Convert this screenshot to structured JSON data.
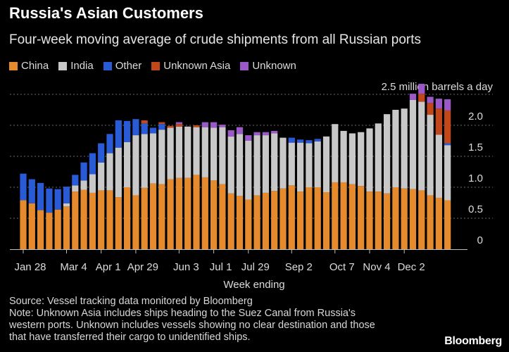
{
  "header": {
    "title": "Russia's Asian Customers",
    "subtitle": "Four-week moving average of crude shipments from all Russian ports"
  },
  "footer": {
    "source": "Source: Vessel tracking data monitored by Bloomberg",
    "note_lines": [
      "Note: Unknown Asia includes ships heading to the Suez Canal from Russia's",
      "western ports. Unknown includes vessels showing no clear destination and those",
      "that have transferred their cargo to unidentified ships."
    ],
    "brand": "Bloomberg"
  },
  "chart_data": {
    "type": "bar",
    "stacked": true,
    "unit_label": "2.5 million barrels a day",
    "xlabel": "Week ending",
    "ylabel": "",
    "ylim": [
      0,
      2.5
    ],
    "y_ticks": [
      "0",
      "0.5",
      "1.0",
      "1.5",
      "2.0"
    ],
    "grid": true,
    "legend_position": "top",
    "x_tick_labels": [
      {
        "index": 0,
        "label": "Jan 28"
      },
      {
        "index": 5,
        "label": "Mar 4"
      },
      {
        "index": 9,
        "label": "Apr 1"
      },
      {
        "index": 13,
        "label": "Apr 29"
      },
      {
        "index": 18,
        "label": "Jun 3"
      },
      {
        "index": 22,
        "label": "Jul 1"
      },
      {
        "index": 26,
        "label": "Jul 29"
      },
      {
        "index": 31,
        "label": "Sep 2"
      },
      {
        "index": 36,
        "label": "Oct 7"
      },
      {
        "index": 40,
        "label": "Nov 4"
      },
      {
        "index": 44,
        "label": "Dec 2"
      }
    ],
    "series": [
      {
        "name": "China",
        "color": "#e68a2e",
        "values": [
          0.79,
          0.74,
          0.63,
          0.59,
          0.64,
          0.69,
          0.93,
          0.96,
          0.91,
          0.95,
          0.95,
          0.84,
          1.0,
          0.87,
          0.99,
          1.06,
          1.05,
          1.13,
          1.15,
          1.15,
          1.2,
          1.16,
          1.11,
          1.05,
          0.9,
          0.86,
          0.8,
          0.87,
          0.91,
          0.94,
          0.98,
          1.03,
          0.93,
          1.0,
          1.0,
          0.92,
          1.08,
          1.08,
          1.05,
          1.02,
          0.93,
          0.93,
          0.9,
          1.0,
          0.98,
          0.97,
          0.95,
          0.87,
          0.83,
          0.79
        ]
      },
      {
        "name": "India",
        "color": "#c8c8c8",
        "values": [
          0.0,
          0.0,
          0.0,
          0.0,
          0.0,
          0.05,
          0.1,
          0.15,
          0.3,
          0.45,
          0.6,
          0.8,
          0.73,
          0.97,
          0.87,
          0.81,
          0.88,
          0.83,
          0.83,
          0.83,
          0.77,
          0.81,
          0.85,
          0.92,
          0.92,
          1.0,
          0.95,
          0.97,
          0.93,
          0.93,
          0.82,
          0.69,
          0.79,
          0.71,
          0.74,
          0.9,
          0.94,
          0.83,
          0.82,
          0.87,
          1.02,
          1.1,
          1.28,
          1.25,
          1.29,
          1.44,
          1.43,
          1.3,
          1.02,
          0.89
        ]
      },
      {
        "name": "Other",
        "color": "#2a5bd7",
        "values": [
          0.43,
          0.39,
          0.44,
          0.39,
          0.33,
          0.27,
          0.17,
          0.29,
          0.34,
          0.31,
          0.31,
          0.44,
          0.34,
          0.26,
          0.17,
          0.09,
          0.09,
          0.0,
          0.0,
          0.0,
          0.0,
          0.0,
          0.0,
          0.0,
          0.0,
          0.0,
          0.0,
          0.0,
          0.0,
          0.0,
          0.0,
          0.08,
          0.05,
          0.05,
          0.04,
          0.0,
          0.0,
          0.0,
          0.0,
          0.0,
          0.0,
          0.0,
          0.0,
          0.0,
          0.0,
          0.0,
          0.0,
          0.0,
          0.0,
          0.03
        ]
      },
      {
        "name": "Unknown Asia",
        "color": "#c2471b",
        "values": [
          0.0,
          0.0,
          0.0,
          0.0,
          0.0,
          0.0,
          0.0,
          0.0,
          0.0,
          0.0,
          0.0,
          0.0,
          0.0,
          0.0,
          0.05,
          0.0,
          0.03,
          0.03,
          0.04,
          0.0,
          0.03,
          0.0,
          0.0,
          0.0,
          0.0,
          0.0,
          0.0,
          0.0,
          0.0,
          0.0,
          0.0,
          0.0,
          0.0,
          0.0,
          0.0,
          0.0,
          0.0,
          0.0,
          0.0,
          0.0,
          0.0,
          0.0,
          0.0,
          0.0,
          0.0,
          0.0,
          0.13,
          0.19,
          0.42,
          0.53
        ]
      },
      {
        "name": "Unknown",
        "color": "#9b59c8",
        "values": [
          0.0,
          0.0,
          0.0,
          0.0,
          0.0,
          0.0,
          0.0,
          0.0,
          0.0,
          0.0,
          0.0,
          0.0,
          0.0,
          0.0,
          0.0,
          0.0,
          0.0,
          0.0,
          0.03,
          0.0,
          0.0,
          0.08,
          0.09,
          0.04,
          0.1,
          0.11,
          0.09,
          0.05,
          0.05,
          0.04,
          0.0,
          0.0,
          0.0,
          0.0,
          0.0,
          0.0,
          0.0,
          0.0,
          0.0,
          0.0,
          0.0,
          0.0,
          0.0,
          0.0,
          0.0,
          0.1,
          0.16,
          0.1,
          0.16,
          0.18
        ]
      }
    ]
  }
}
